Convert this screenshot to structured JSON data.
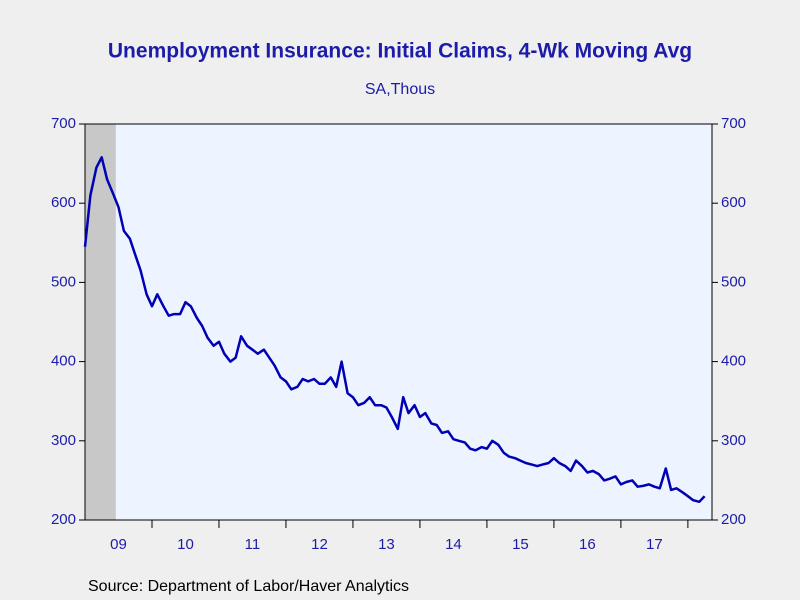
{
  "chart_data": {
    "type": "line",
    "title": "Unemployment Insurance: Initial Claims, 4-Wk Moving Avg",
    "subtitle": "SA,Thous",
    "source": "Source:  Department of Labor/Haver Analytics",
    "xlim": [
      2009.0,
      2018.36
    ],
    "xticks": [
      {
        "value": 2009.5,
        "label": "09"
      },
      {
        "value": 2010.5,
        "label": "10"
      },
      {
        "value": 2011.5,
        "label": "11"
      },
      {
        "value": 2012.5,
        "label": "12"
      },
      {
        "value": 2013.5,
        "label": "13"
      },
      {
        "value": 2014.5,
        "label": "14"
      },
      {
        "value": 2015.5,
        "label": "15"
      },
      {
        "value": 2016.5,
        "label": "16"
      },
      {
        "value": 2017.5,
        "label": "17"
      }
    ],
    "ylim": [
      200,
      700
    ],
    "yticks": [
      200,
      300,
      400,
      500,
      600,
      700
    ],
    "y2lim": [
      200,
      700
    ],
    "y2ticks": [
      200,
      300,
      400,
      500,
      600,
      700
    ],
    "recession_shade": [
      2009.0,
      2009.46
    ],
    "series": [
      {
        "color": "#0000b4",
        "x": [
          2009.0,
          2009.08,
          2009.17,
          2009.25,
          2009.33,
          2009.42,
          2009.5,
          2009.58,
          2009.67,
          2009.75,
          2009.83,
          2009.92,
          2010.0,
          2010.08,
          2010.17,
          2010.25,
          2010.33,
          2010.42,
          2010.5,
          2010.58,
          2010.67,
          2010.75,
          2010.83,
          2010.92,
          2011.0,
          2011.08,
          2011.17,
          2011.25,
          2011.33,
          2011.42,
          2011.5,
          2011.58,
          2011.67,
          2011.75,
          2011.83,
          2011.92,
          2012.0,
          2012.08,
          2012.17,
          2012.25,
          2012.33,
          2012.42,
          2012.5,
          2012.58,
          2012.67,
          2012.75,
          2012.83,
          2012.92,
          2013.0,
          2013.08,
          2013.17,
          2013.25,
          2013.33,
          2013.42,
          2013.5,
          2013.58,
          2013.67,
          2013.75,
          2013.83,
          2013.92,
          2014.0,
          2014.08,
          2014.17,
          2014.25,
          2014.33,
          2014.42,
          2014.5,
          2014.58,
          2014.67,
          2014.75,
          2014.83,
          2014.92,
          2015.0,
          2015.08,
          2015.17,
          2015.25,
          2015.33,
          2015.42,
          2015.5,
          2015.58,
          2015.67,
          2015.75,
          2015.83,
          2015.92,
          2016.0,
          2016.08,
          2016.17,
          2016.25,
          2016.33,
          2016.42,
          2016.5,
          2016.58,
          2016.67,
          2016.75,
          2016.83,
          2016.92,
          2017.0,
          2017.08,
          2017.17,
          2017.25,
          2017.33,
          2017.42,
          2017.5,
          2017.58,
          2017.67,
          2017.75,
          2017.83,
          2017.92,
          2018.0,
          2018.08,
          2018.17,
          2018.25
        ],
        "values": [
          545,
          610,
          645,
          658,
          630,
          612,
          595,
          565,
          555,
          535,
          515,
          485,
          470,
          485,
          470,
          458,
          460,
          460,
          475,
          470,
          455,
          445,
          430,
          420,
          425,
          410,
          400,
          405,
          432,
          420,
          415,
          410,
          415,
          405,
          395,
          380,
          375,
          365,
          368,
          378,
          375,
          378,
          372,
          372,
          380,
          368,
          400,
          360,
          355,
          345,
          348,
          355,
          345,
          345,
          342,
          330,
          315,
          355,
          335,
          345,
          330,
          335,
          322,
          320,
          310,
          312,
          302,
          300,
          298,
          290,
          288,
          292,
          290,
          300,
          295,
          285,
          280,
          278,
          275,
          272,
          270,
          268,
          270,
          272,
          278,
          272,
          268,
          262,
          275,
          268,
          260,
          262,
          258,
          250,
          252,
          255,
          245,
          248,
          250,
          242,
          243,
          245,
          242,
          240,
          265,
          238,
          240,
          235,
          230,
          225,
          223,
          230
        ]
      }
    ]
  }
}
